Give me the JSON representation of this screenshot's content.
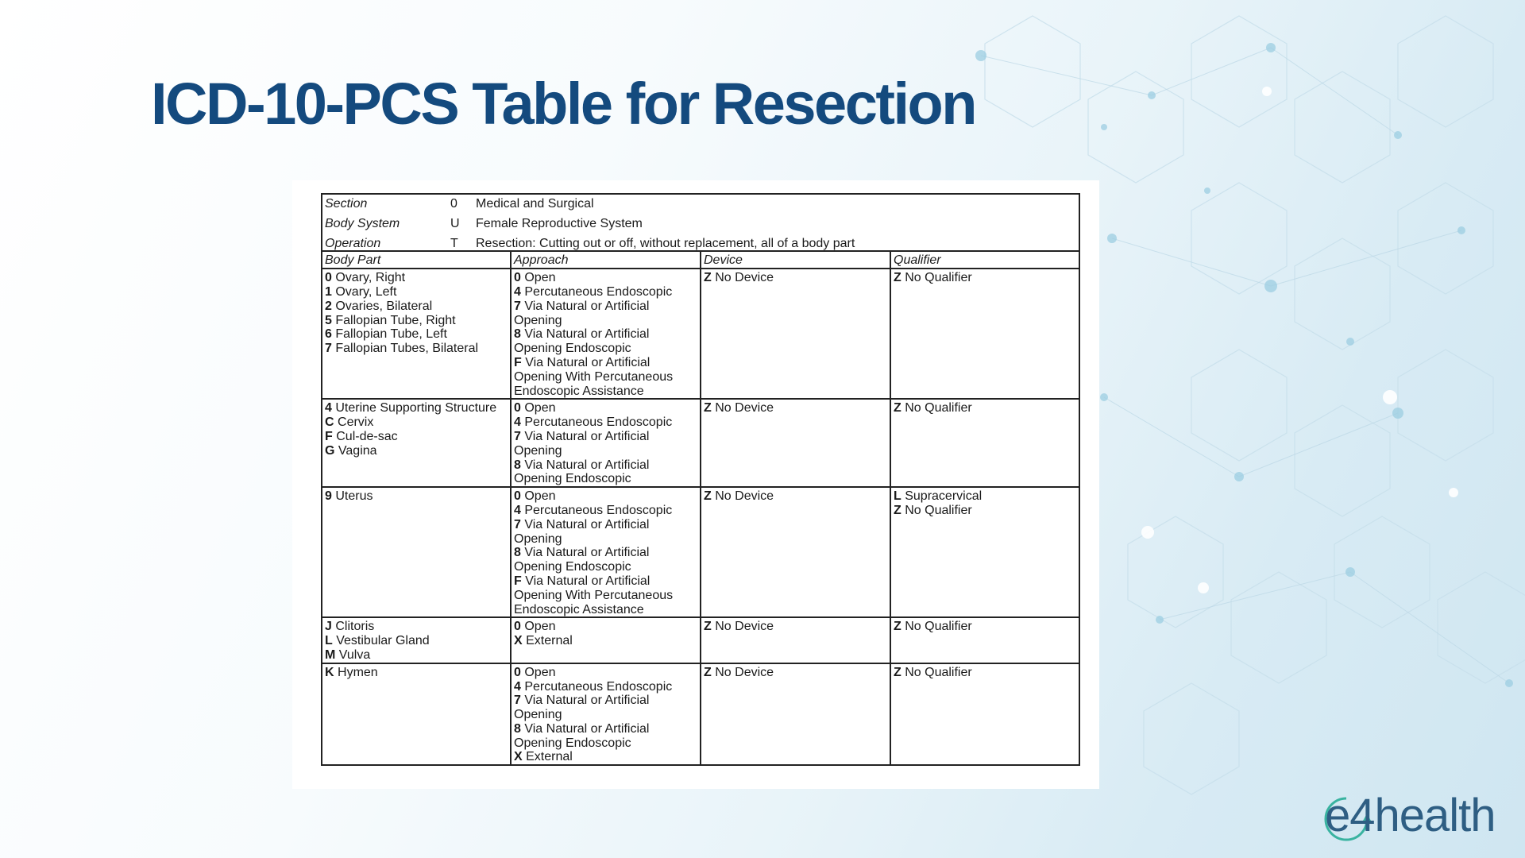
{
  "slide": {
    "title": "ICD-10-PCS Table for Resection",
    "logo_text": "e4health",
    "colors": {
      "title": "#144a7e",
      "logo": "#2e5e83",
      "logo_accent": "#39b3a0"
    }
  },
  "table": {
    "header": [
      {
        "label": "Section",
        "code": "0",
        "value": "Medical and Surgical"
      },
      {
        "label": "Body System",
        "code": "U",
        "value": "Female Reproductive System"
      },
      {
        "label": "Operation",
        "code": "T",
        "value": "Resection: Cutting out or off, without replacement, all of a body part"
      }
    ],
    "columns": [
      "Body Part",
      "Approach",
      "Device",
      "Qualifier"
    ],
    "rows": [
      {
        "body_part": [
          {
            "code": "0",
            "text": "Ovary, Right"
          },
          {
            "code": "1",
            "text": "Ovary, Left"
          },
          {
            "code": "2",
            "text": "Ovaries, Bilateral"
          },
          {
            "code": "5",
            "text": "Fallopian Tube, Right"
          },
          {
            "code": "6",
            "text": "Fallopian Tube, Left"
          },
          {
            "code": "7",
            "text": "Fallopian Tubes, Bilateral"
          }
        ],
        "approach": [
          {
            "code": "0",
            "text": "Open"
          },
          {
            "code": "4",
            "text": "Percutaneous Endoscopic"
          },
          {
            "code": "7",
            "text": "Via Natural or Artificial Opening"
          },
          {
            "code": "8",
            "text": "Via Natural or Artificial Opening Endoscopic"
          },
          {
            "code": "F",
            "text": "Via Natural or Artificial Opening With Percutaneous Endoscopic Assistance"
          }
        ],
        "device": [
          {
            "code": "Z",
            "text": "No Device"
          }
        ],
        "qualifier": [
          {
            "code": "Z",
            "text": "No Qualifier"
          }
        ]
      },
      {
        "body_part": [
          {
            "code": "4",
            "text": "Uterine Supporting Structure"
          },
          {
            "code": "C",
            "text": "Cervix"
          },
          {
            "code": "F",
            "text": "Cul-de-sac"
          },
          {
            "code": "G",
            "text": "Vagina"
          }
        ],
        "approach": [
          {
            "code": "0",
            "text": "Open"
          },
          {
            "code": "4",
            "text": "Percutaneous Endoscopic"
          },
          {
            "code": "7",
            "text": "Via Natural or Artificial Opening"
          },
          {
            "code": "8",
            "text": "Via Natural or Artificial Opening Endoscopic"
          }
        ],
        "device": [
          {
            "code": "Z",
            "text": "No Device"
          }
        ],
        "qualifier": [
          {
            "code": "Z",
            "text": "No Qualifier"
          }
        ]
      },
      {
        "body_part": [
          {
            "code": "9",
            "text": "Uterus"
          }
        ],
        "approach": [
          {
            "code": "0",
            "text": "Open"
          },
          {
            "code": "4",
            "text": "Percutaneous Endoscopic"
          },
          {
            "code": "7",
            "text": "Via Natural or Artificial Opening"
          },
          {
            "code": "8",
            "text": "Via Natural or Artificial Opening Endoscopic"
          },
          {
            "code": "F",
            "text": "Via Natural or Artificial Opening With Percutaneous Endoscopic Assistance"
          }
        ],
        "device": [
          {
            "code": "Z",
            "text": "No Device"
          }
        ],
        "qualifier": [
          {
            "code": "L",
            "text": "Supracervical"
          },
          {
            "code": "Z",
            "text": "No Qualifier"
          }
        ]
      },
      {
        "body_part": [
          {
            "code": "J",
            "text": "Clitoris"
          },
          {
            "code": "L",
            "text": "Vestibular Gland"
          },
          {
            "code": "M",
            "text": "Vulva"
          }
        ],
        "approach": [
          {
            "code": "0",
            "text": "Open"
          },
          {
            "code": "X",
            "text": "External"
          }
        ],
        "device": [
          {
            "code": "Z",
            "text": "No Device"
          }
        ],
        "qualifier": [
          {
            "code": "Z",
            "text": "No Qualifier"
          }
        ]
      },
      {
        "body_part": [
          {
            "code": "K",
            "text": "Hymen"
          }
        ],
        "approach": [
          {
            "code": "0",
            "text": "Open"
          },
          {
            "code": "4",
            "text": "Percutaneous Endoscopic"
          },
          {
            "code": "7",
            "text": "Via Natural or Artificial Opening"
          },
          {
            "code": "8",
            "text": "Via Natural or Artificial Opening Endoscopic"
          },
          {
            "code": "X",
            "text": "External"
          }
        ],
        "device": [
          {
            "code": "Z",
            "text": "No Device"
          }
        ],
        "qualifier": [
          {
            "code": "Z",
            "text": "No Qualifier"
          }
        ]
      }
    ]
  }
}
